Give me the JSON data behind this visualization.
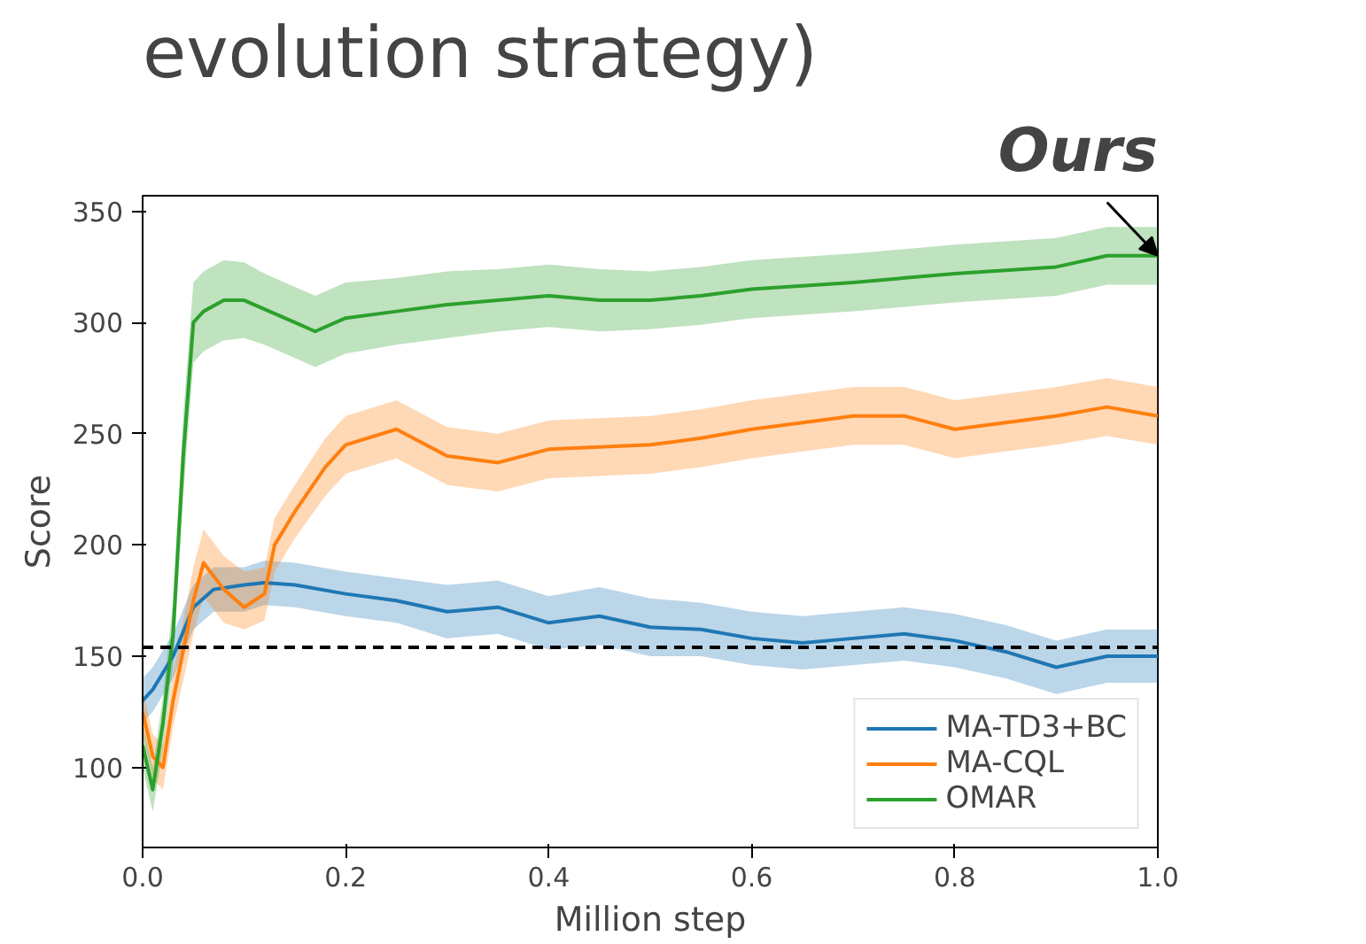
{
  "chart_data": {
    "type": "line",
    "title": "evolution strategy)",
    "xlabel": "Million step",
    "ylabel": "Score",
    "xlim": [
      0,
      1
    ],
    "ylim": [
      64,
      357
    ],
    "xticks": [
      {
        "value": 0,
        "label": "0.0"
      },
      {
        "value": 0.2,
        "label": "0.2"
      },
      {
        "value": 0.4,
        "label": "0.4"
      },
      {
        "value": 0.6,
        "label": "0.6"
      },
      {
        "value": 0.8,
        "label": "0.8"
      },
      {
        "value": 1,
        "label": "1.0"
      }
    ],
    "yticks": [
      100,
      150,
      200,
      250,
      300,
      350
    ],
    "grid": false,
    "legend": "bottom right",
    "ref_lines": [
      {
        "axis": "y",
        "value": 154,
        "color": "#000000",
        "line_style": "dashed"
      }
    ],
    "annotations": [
      {
        "text": "Ours",
        "x": 1.0,
        "y": 330
      }
    ],
    "series": [
      {
        "name": "MA-TD3+BC",
        "color": "#1f77b4",
        "x": [
          0,
          0.01,
          0.03,
          0.05,
          0.07,
          0.1,
          0.12,
          0.15,
          0.2,
          0.25,
          0.3,
          0.35,
          0.4,
          0.45,
          0.5,
          0.55,
          0.6,
          0.65,
          0.7,
          0.75,
          0.8,
          0.85,
          0.9,
          0.95,
          1.0
        ],
        "values": [
          130,
          135,
          150,
          172,
          180,
          182,
          183,
          182,
          178,
          175,
          170,
          172,
          165,
          168,
          163,
          162,
          158,
          156,
          158,
          160,
          157,
          152,
          145,
          150,
          150
        ],
        "lower": [
          120,
          125,
          140,
          162,
          170,
          170,
          173,
          172,
          168,
          165,
          158,
          160,
          153,
          155,
          150,
          150,
          146,
          144,
          146,
          148,
          145,
          140,
          133,
          138,
          138
        ],
        "upper": [
          140,
          145,
          160,
          182,
          190,
          190,
          193,
          192,
          188,
          185,
          182,
          184,
          177,
          181,
          176,
          174,
          170,
          168,
          170,
          172,
          169,
          164,
          157,
          162,
          162
        ]
      },
      {
        "name": "MA-CQL",
        "color": "#ff7f0e",
        "x": [
          0,
          0.01,
          0.02,
          0.03,
          0.05,
          0.06,
          0.08,
          0.1,
          0.12,
          0.13,
          0.15,
          0.18,
          0.2,
          0.25,
          0.3,
          0.35,
          0.4,
          0.5,
          0.55,
          0.6,
          0.65,
          0.7,
          0.75,
          0.8,
          0.85,
          0.9,
          0.95,
          1.0
        ],
        "values": [
          125,
          105,
          100,
          130,
          175,
          192,
          180,
          172,
          178,
          200,
          215,
          235,
          245,
          252,
          240,
          237,
          243,
          245,
          248,
          252,
          255,
          258,
          258,
          252,
          255,
          258,
          262,
          258
        ],
        "lower": [
          115,
          95,
          90,
          118,
          160,
          177,
          165,
          162,
          166,
          188,
          203,
          222,
          232,
          239,
          227,
          224,
          230,
          232,
          235,
          239,
          242,
          245,
          245,
          239,
          242,
          245,
          249,
          245
        ],
        "upper": [
          135,
          115,
          110,
          142,
          190,
          207,
          195,
          188,
          190,
          212,
          227,
          248,
          258,
          265,
          253,
          250,
          256,
          258,
          261,
          265,
          268,
          271,
          271,
          265,
          268,
          271,
          275,
          271
        ]
      },
      {
        "name": "OMAR",
        "color": "#2ca02c",
        "x": [
          0,
          0.01,
          0.02,
          0.03,
          0.04,
          0.05,
          0.06,
          0.08,
          0.1,
          0.12,
          0.15,
          0.17,
          0.2,
          0.25,
          0.3,
          0.35,
          0.4,
          0.45,
          0.5,
          0.55,
          0.6,
          0.7,
          0.8,
          0.9,
          0.95,
          1.0
        ],
        "values": [
          110,
          90,
          120,
          160,
          240,
          300,
          305,
          310,
          310,
          306,
          300,
          296,
          302,
          305,
          308,
          310,
          312,
          310,
          310,
          312,
          315,
          318,
          322,
          325,
          330,
          330
        ],
        "lower": [
          100,
          80,
          108,
          145,
          222,
          282,
          287,
          292,
          293,
          290,
          284,
          280,
          286,
          290,
          293,
          296,
          298,
          296,
          297,
          299,
          302,
          305,
          309,
          312,
          317,
          317
        ],
        "upper": [
          120,
          100,
          132,
          175,
          258,
          318,
          323,
          328,
          327,
          322,
          316,
          312,
          318,
          320,
          323,
          324,
          326,
          324,
          323,
          325,
          328,
          331,
          335,
          338,
          343,
          343
        ]
      }
    ]
  }
}
